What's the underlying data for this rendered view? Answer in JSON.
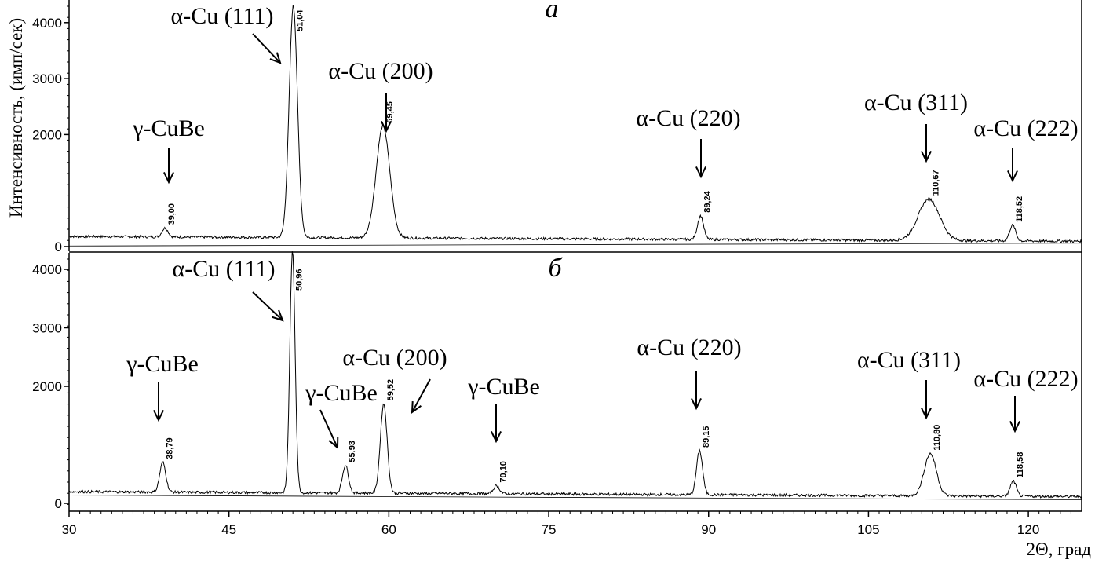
{
  "chart_data": [
    {
      "type": "line",
      "panel_label": "а",
      "ylabel": "Интенсивность, (имп/сек)",
      "xlabel": "2Θ, град",
      "xlim": [
        30,
        125
      ],
      "ylim": [
        0,
        4300
      ],
      "xticks": [
        "30",
        "45",
        "60",
        "75",
        "90",
        "105",
        "120"
      ],
      "yticks": [
        "0",
        "2000",
        "3000",
        "4000"
      ],
      "grid": false,
      "peaks": [
        {
          "x": 39.0,
          "y": 330,
          "label": "39,00",
          "phase": "γ-CuBe"
        },
        {
          "x": 51.04,
          "y": 4300,
          "label": "51,04",
          "phase": "α-Cu (111)"
        },
        {
          "x": 59.45,
          "y": 2150,
          "label": "59,45",
          "phase": "α-Cu (200)"
        },
        {
          "x": 89.24,
          "y": 550,
          "label": "89,24",
          "phase": "α-Cu (220)"
        },
        {
          "x": 110.67,
          "y": 850,
          "label": "110,67",
          "phase": "α-Cu (311)"
        },
        {
          "x": 118.52,
          "y": 380,
          "label": "118,52",
          "phase": "α-Cu (222)"
        }
      ]
    },
    {
      "type": "line",
      "panel_label": "б",
      "xlim": [
        30,
        125
      ],
      "ylim": [
        0,
        4300
      ],
      "yticks": [
        "0",
        "2000",
        "3000",
        "4000"
      ],
      "grid": false,
      "peaks": [
        {
          "x": 38.79,
          "y": 700,
          "label": "38,79",
          "phase": "γ-CuBe"
        },
        {
          "x": 50.96,
          "y": 4300,
          "label": "50,96",
          "phase": "α-Cu (111)"
        },
        {
          "x": 55.93,
          "y": 650,
          "label": "55,93",
          "phase": "γ-CuBe"
        },
        {
          "x": 59.52,
          "y": 1700,
          "label": "59,52",
          "phase": "α-Cu (200)"
        },
        {
          "x": 70.1,
          "y": 300,
          "label": "70,10",
          "phase": "γ-CuBe"
        },
        {
          "x": 89.15,
          "y": 900,
          "label": "89,15",
          "phase": "α-Cu (220)"
        },
        {
          "x": 110.8,
          "y": 850,
          "label": "110,80",
          "phase": "α-Cu (311)"
        },
        {
          "x": 118.58,
          "y": 380,
          "label": "118,58",
          "phase": "α-Cu (222)"
        }
      ]
    }
  ]
}
